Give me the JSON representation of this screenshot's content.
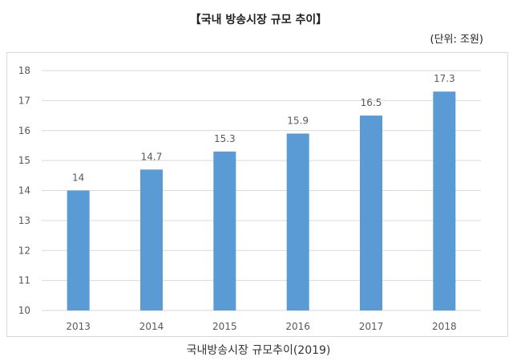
{
  "header": {
    "title": "【국내 방송시장 규모 추이】",
    "unit": "(단위: 조원)"
  },
  "caption": "국내방송시장 규모추이(2019)",
  "colors": {
    "bar": "#5b9bd5",
    "grid": "#d9d9d9",
    "text": "#595959"
  },
  "chart_data": {
    "type": "bar",
    "categories": [
      "2013",
      "2014",
      "2015",
      "2016",
      "2017",
      "2018"
    ],
    "values": [
      14,
      14.7,
      15.3,
      15.9,
      16.5,
      17.3
    ],
    "value_labels": [
      "14",
      "14.7",
      "15.3",
      "15.9",
      "16.5",
      "17.3"
    ],
    "yticks": [
      "10",
      "11",
      "12",
      "13",
      "14",
      "15",
      "16",
      "17",
      "18"
    ],
    "ylim": [
      10,
      18
    ],
    "grid": true,
    "legend": "none"
  }
}
